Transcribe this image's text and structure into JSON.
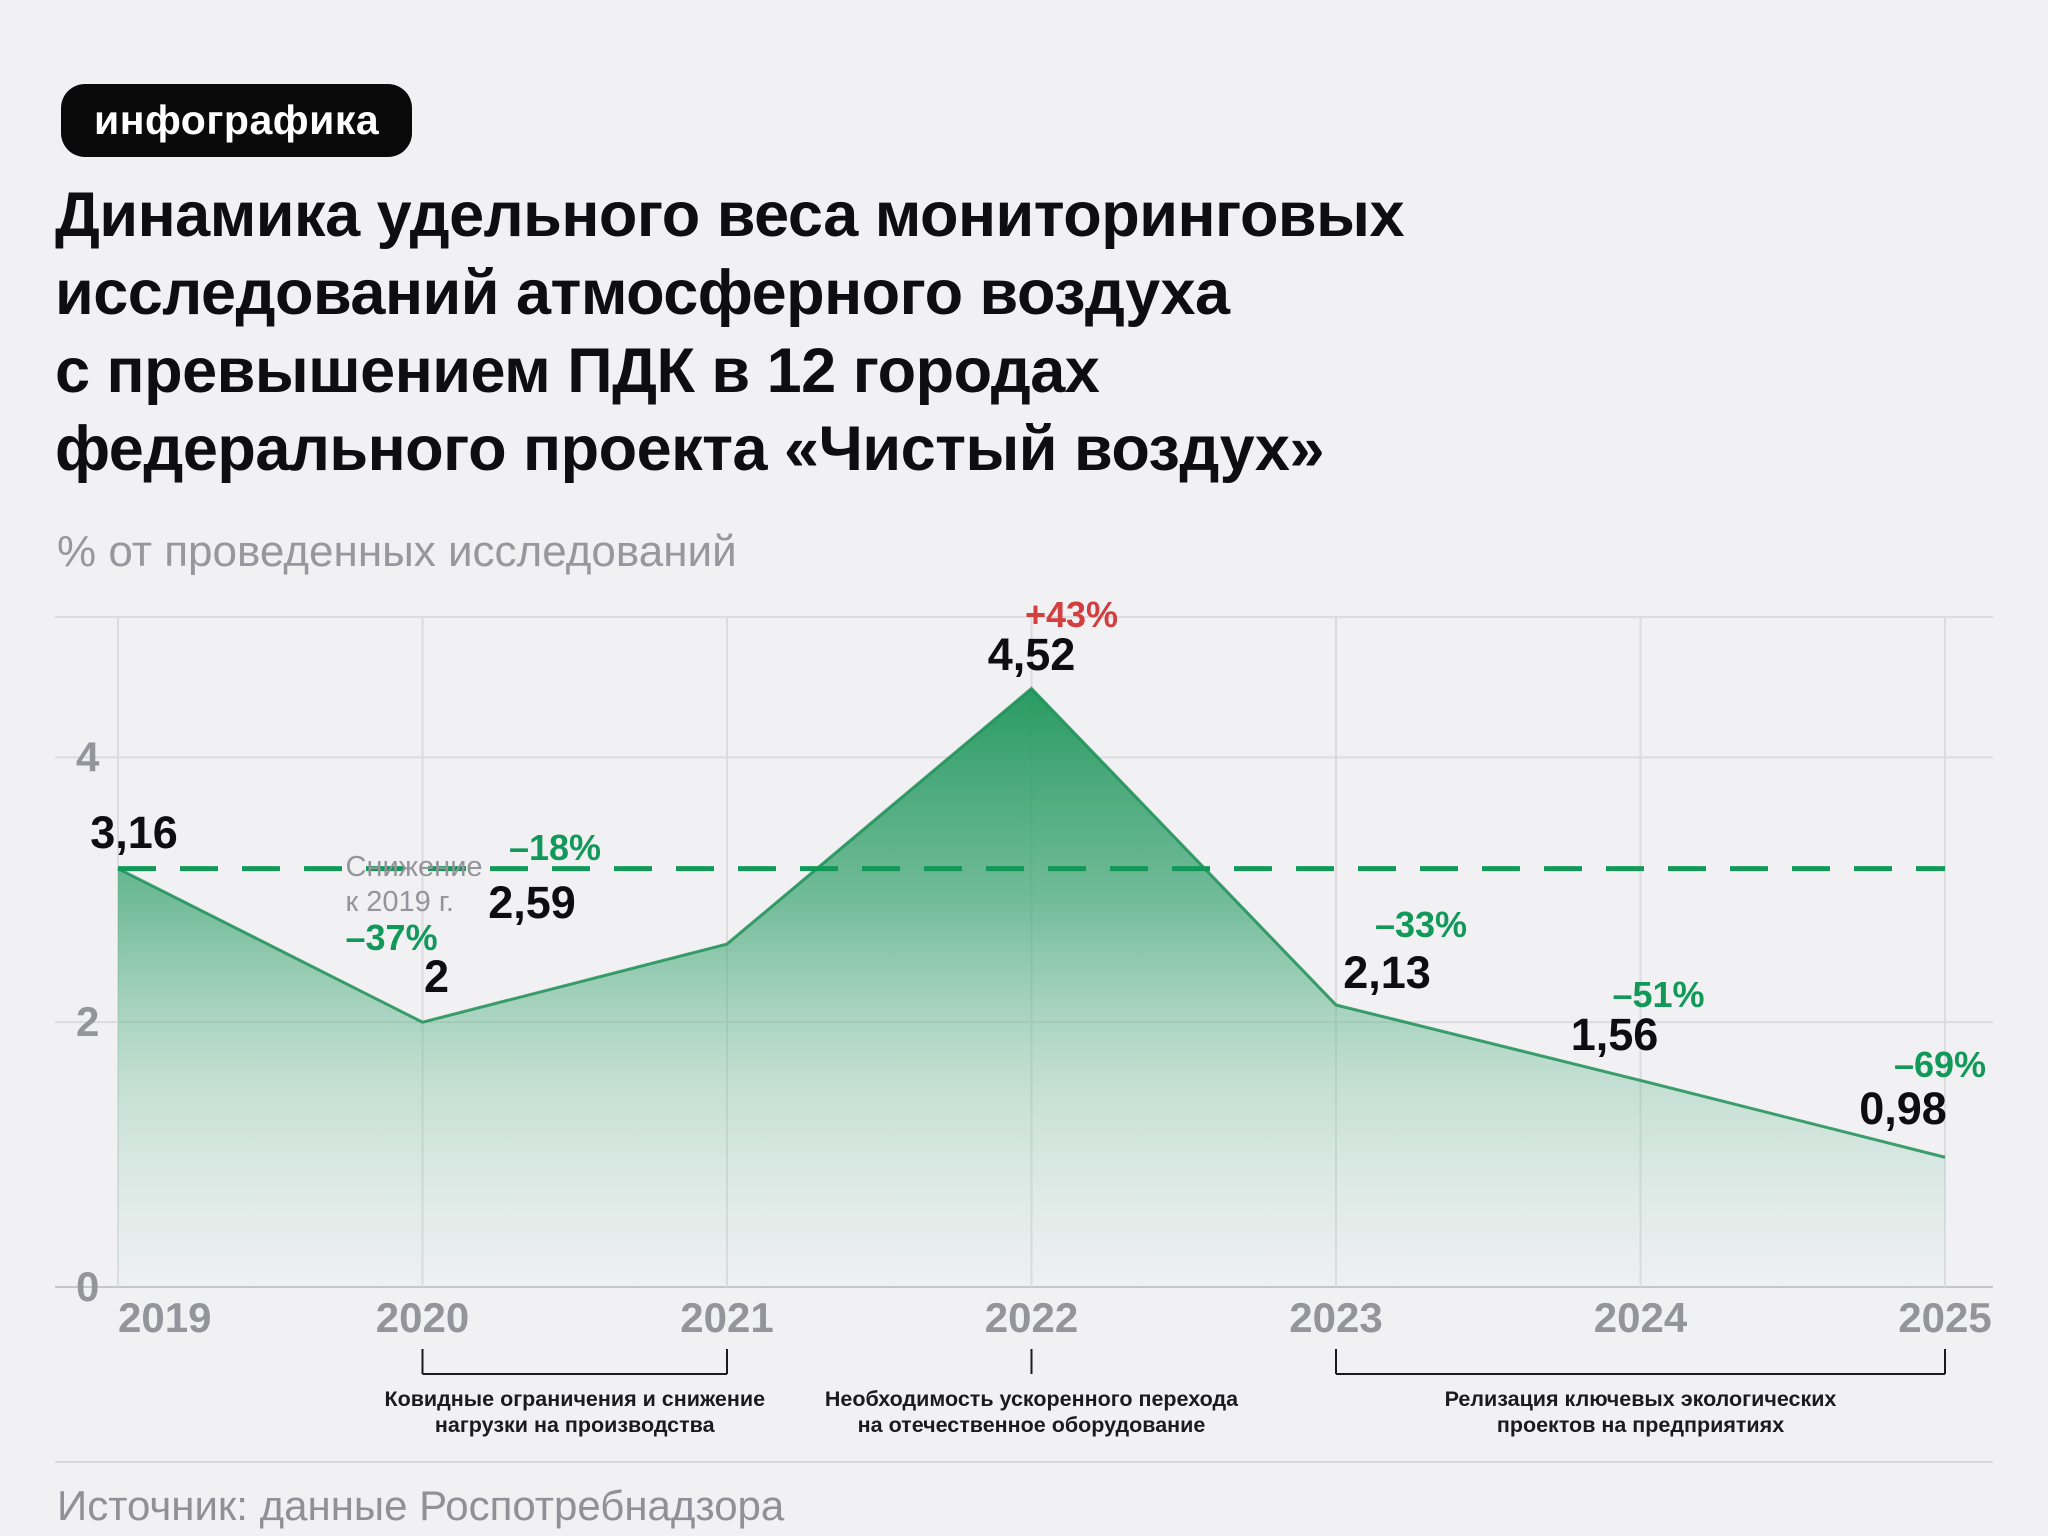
{
  "header": {
    "badge": "инфографика",
    "title_lines": [
      "Динамика удельного веса мониторинговых",
      "исследований атмосферного воздуха",
      "с превышением ПДК в 12 городах",
      "федерального проекта «Чистый воздух»"
    ],
    "subtitle": "% от проведенных исследований"
  },
  "footer": {
    "source": "Источник: данные Роспотребнадзора"
  },
  "colors": {
    "background": "#f1f1f3",
    "ink": "#0e0e10",
    "muted": "#94949b",
    "green": "#12995a",
    "red": "#d23f3f",
    "grid": "#dcdcdf",
    "axis": "#c6c6ca",
    "annotation_ink": "#1b1b1d",
    "area_top": "#23985e"
  },
  "chart_data": {
    "type": "area",
    "title": "Динамика удельного веса мониторинговых исследований атмосферного воздуха с превышением ПДК в 12 городах федерального проекта «Чистый воздух»",
    "ylabel": "% от проведенных исследований",
    "xlabel": "",
    "yticks": [
      0,
      2,
      4
    ],
    "ylim": [
      0,
      5.06
    ],
    "grid": true,
    "legend": false,
    "baseline": {
      "value": 3.16,
      "note_lines": [
        "Снижение",
        "к 2019 г."
      ]
    },
    "points": [
      {
        "year": "2019",
        "value": 3.16,
        "label": "3,16",
        "pct": null,
        "trend": null
      },
      {
        "year": "2020",
        "value": 2,
        "label": "2",
        "pct": "–37%",
        "trend": "down"
      },
      {
        "year": "2021",
        "value": 2.59,
        "label": "2,59",
        "pct": "–18%",
        "trend": "down"
      },
      {
        "year": "2022",
        "value": 4.52,
        "label": "4,52",
        "pct": "+43%",
        "trend": "up"
      },
      {
        "year": "2023",
        "value": 2.13,
        "label": "2,13",
        "pct": "–33%",
        "trend": "down"
      },
      {
        "year": "2024",
        "value": 1.56,
        "label": "1,56",
        "pct": "–51%",
        "trend": "down"
      },
      {
        "year": "2025",
        "value": 0.98,
        "label": "0,98",
        "pct": "–69%",
        "trend": "down"
      }
    ],
    "annotations": [
      {
        "from_year": "2020",
        "to_year": "2021",
        "text_lines": [
          "Ковидные ограничения и снижение",
          "нагрузки на производства"
        ]
      },
      {
        "from_year": "2022",
        "to_year": "2022",
        "text_lines": [
          "Необходимость ускоренного перехода",
          "на отечественное оборудование"
        ]
      },
      {
        "from_year": "2023",
        "to_year": "2025",
        "text_lines": [
          "Релизация ключевых экологических",
          "проектов на предприятиях"
        ]
      }
    ]
  }
}
